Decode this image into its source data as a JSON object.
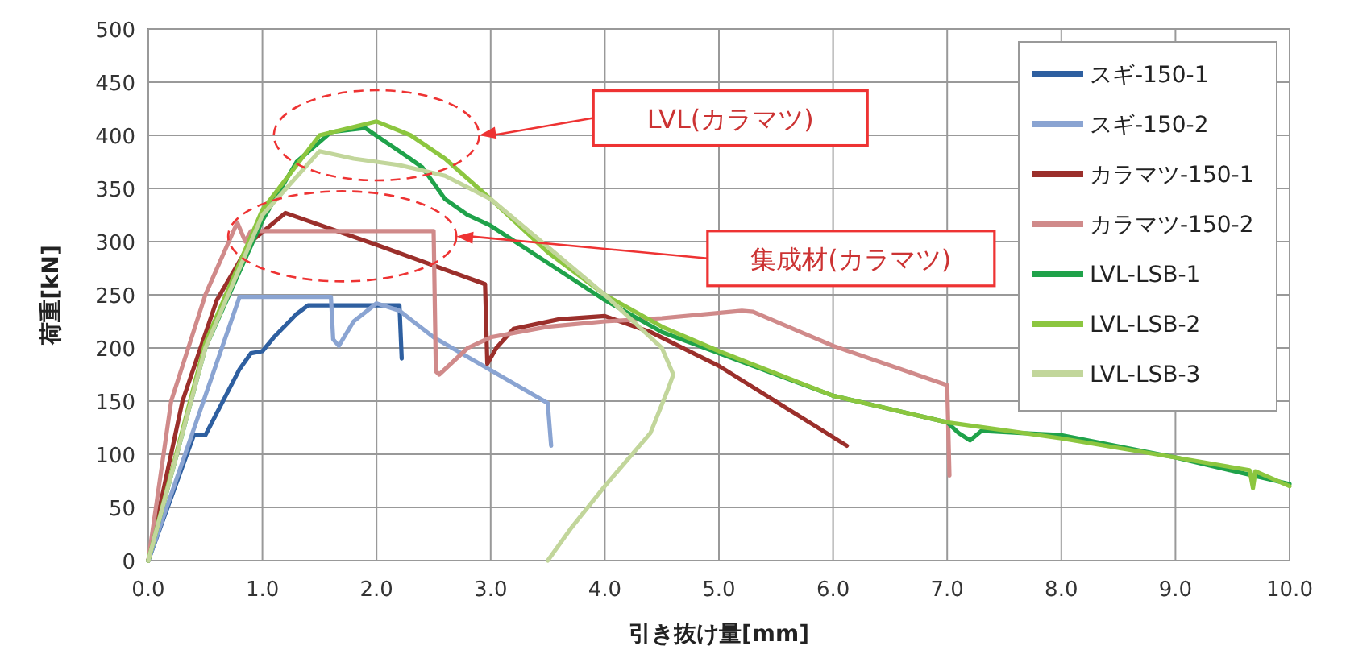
{
  "chart_data": {
    "type": "line",
    "xlabel": "引き抜け量[mm]",
    "ylabel": "荷重[kN]",
    "xlim": [
      0,
      10
    ],
    "xticks": [
      {
        "value": 0,
        "label": "0.0"
      },
      {
        "value": 1,
        "label": "1.0"
      },
      {
        "value": 2,
        "label": "2.0"
      },
      {
        "value": 3,
        "label": "3.0"
      },
      {
        "value": 4,
        "label": "4.0"
      },
      {
        "value": 5,
        "label": "5.0"
      },
      {
        "value": 6,
        "label": "6.0"
      },
      {
        "value": 7,
        "label": "7.0"
      },
      {
        "value": 8,
        "label": "8.0"
      },
      {
        "value": 9,
        "label": "9.0"
      },
      {
        "value": 10,
        "label": "10.0"
      }
    ],
    "ylim": [
      0,
      500
    ],
    "yticks": [
      0,
      50,
      100,
      150,
      200,
      250,
      300,
      350,
      400,
      450,
      500
    ],
    "grid": true,
    "legend": "top right",
    "marker": "none",
    "line_style": "solid",
    "annotations": [
      "LVL(カラマツ)",
      "集成材(カラマツ)"
    ],
    "series": [
      {
        "name": "スギ-150-1",
        "color": "#2e5fa0",
        "x": [
          0,
          0.4,
          0.5,
          0.8,
          0.9,
          1.0,
          1.1,
          1.3,
          1.4,
          2.2,
          2.22
        ],
        "values": [
          0,
          118,
          118,
          180,
          195,
          197,
          210,
          232,
          240,
          240,
          190
        ]
      },
      {
        "name": "スギ-150-2",
        "color": "#8aa4d2",
        "x": [
          0,
          0.8,
          1.6,
          1.62,
          1.67,
          1.8,
          2.0,
          2.2,
          2.5,
          3.5,
          3.53
        ],
        "values": [
          0,
          248,
          248,
          208,
          202,
          225,
          242,
          235,
          210,
          148,
          108
        ]
      },
      {
        "name": "カラマツ-150-1",
        "color": "#9b2f2b",
        "x": [
          0,
          0.3,
          0.6,
          0.9,
          1.2,
          2.0,
          2.95,
          2.97,
          3.05,
          3.2,
          3.6,
          4.0,
          4.4,
          5.0,
          6.12
        ],
        "values": [
          0,
          150,
          245,
          300,
          327,
          297,
          260,
          185,
          200,
          218,
          227,
          230,
          215,
          183,
          108
        ]
      },
      {
        "name": "カラマツ-150-2",
        "color": "#d08a8a",
        "x": [
          0,
          0.2,
          0.5,
          0.78,
          0.85,
          0.9,
          2.5,
          2.52,
          2.55,
          2.8,
          3.0,
          3.5,
          4.0,
          4.5,
          5.2,
          5.3,
          6.0,
          7.0,
          7.02
        ],
        "values": [
          0,
          150,
          250,
          318,
          300,
          310,
          310,
          178,
          175,
          200,
          210,
          220,
          225,
          228,
          235,
          234,
          202,
          165,
          80
        ]
      },
      {
        "name": "LVL-LSB-1",
        "color": "#1fa24a",
        "x": [
          0,
          0.5,
          1.0,
          1.3,
          1.6,
          1.9,
          2.2,
          2.4,
          2.6,
          2.8,
          3.0,
          3.5,
          4.0,
          4.5,
          5.0,
          6.0,
          7.0,
          7.1,
          7.2,
          7.3,
          8.0,
          9.0,
          10.0
        ],
        "values": [
          0,
          200,
          320,
          375,
          403,
          407,
          385,
          370,
          340,
          325,
          315,
          280,
          245,
          215,
          195,
          155,
          130,
          120,
          113,
          122,
          118,
          97,
          72
        ]
      },
      {
        "name": "LVL-LSB-2",
        "color": "#8cc63f",
        "x": [
          0,
          0.5,
          1.0,
          1.5,
          2.0,
          2.3,
          2.6,
          3.0,
          3.5,
          4.0,
          4.5,
          5.0,
          6.0,
          7.0,
          8.0,
          9.0,
          9.65,
          9.68,
          9.7,
          10.0
        ],
        "values": [
          0,
          205,
          330,
          400,
          413,
          400,
          378,
          340,
          290,
          250,
          220,
          197,
          155,
          130,
          115,
          97,
          85,
          68,
          84,
          70
        ]
      },
      {
        "name": "LVL-LSB-3",
        "color": "#c2d69b",
        "x": [
          0,
          0.5,
          1.0,
          1.5,
          1.8,
          2.2,
          2.6,
          3.0,
          3.5,
          4.0,
          4.3,
          4.5,
          4.6,
          4.55,
          4.4,
          4.0,
          3.7,
          3.5
        ],
        "values": [
          0,
          200,
          325,
          385,
          378,
          372,
          362,
          340,
          295,
          250,
          220,
          200,
          175,
          160,
          120,
          70,
          30,
          0
        ]
      }
    ]
  }
}
